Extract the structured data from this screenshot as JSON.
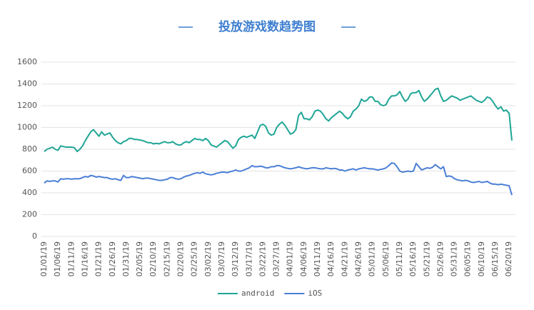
{
  "chart_data": {
    "type": "line",
    "title": "投放游戏数趋势图",
    "categories": [
      "01/01/19",
      null,
      null,
      null,
      null,
      "01/06/19",
      null,
      null,
      null,
      null,
      "01/11/19",
      null,
      null,
      null,
      null,
      "01/16/19",
      null,
      null,
      null,
      null,
      "01/21/19",
      null,
      null,
      null,
      null,
      "01/26/19",
      null,
      null,
      null,
      null,
      "01/31/19",
      null,
      null,
      null,
      null,
      "02/05/19",
      null,
      null,
      null,
      null,
      "02/10/19",
      null,
      null,
      null,
      null,
      "02/15/19",
      null,
      null,
      null,
      null,
      "02/20/19",
      null,
      null,
      null,
      null,
      "02/25/19",
      null,
      null,
      null,
      null,
      "03/02/19",
      null,
      null,
      null,
      null,
      "03/07/19",
      null,
      null,
      null,
      null,
      "03/12/19",
      null,
      null,
      null,
      null,
      "03/17/19",
      null,
      null,
      null,
      null,
      "03/22/19",
      null,
      null,
      null,
      null,
      "03/27/19",
      null,
      null,
      null,
      null,
      "04/01/19",
      null,
      null,
      null,
      null,
      "04/06/19",
      null,
      null,
      null,
      null,
      "04/11/19",
      null,
      null,
      null,
      null,
      "04/16/19",
      null,
      null,
      null,
      null,
      "04/21/19",
      null,
      null,
      null,
      null,
      "04/26/19",
      null,
      null,
      null,
      null,
      "05/01/19",
      null,
      null,
      null,
      null,
      "05/06/19",
      null,
      null,
      null,
      null,
      "05/11/19",
      null,
      null,
      null,
      null,
      "05/16/19",
      null,
      null,
      null,
      null,
      "05/21/19",
      null,
      null,
      null,
      null,
      "05/26/19",
      null,
      null,
      null,
      null,
      "05/31/19",
      null,
      null,
      null,
      null,
      "06/05/19",
      null,
      null,
      null,
      null,
      "06/10/19",
      null,
      null,
      null,
      null,
      "06/15/19",
      null,
      null,
      null,
      null,
      "06/20/19",
      null
    ],
    "series": [
      {
        "name": "android",
        "color": "#1fa596",
        "values": [
          780,
          800,
          810,
          820,
          800,
          790,
          830,
          825,
          820,
          820,
          820,
          815,
          780,
          800,
          830,
          880,
          920,
          960,
          980,
          950,
          920,
          960,
          930,
          940,
          950,
          910,
          880,
          860,
          850,
          870,
          880,
          900,
          900,
          890,
          890,
          885,
          880,
          870,
          860,
          860,
          850,
          855,
          850,
          860,
          870,
          860,
          860,
          870,
          850,
          840,
          840,
          860,
          870,
          860,
          880,
          900,
          890,
          890,
          880,
          900,
          880,
          840,
          830,
          820,
          840,
          860,
          880,
          870,
          840,
          810,
          830,
          890,
          910,
          920,
          910,
          920,
          930,
          900,
          960,
          1020,
          1030,
          1010,
          950,
          930,
          940,
          1000,
          1030,
          1050,
          1020,
          980,
          940,
          950,
          980,
          1110,
          1140,
          1080,
          1080,
          1070,
          1100,
          1150,
          1160,
          1150,
          1120,
          1080,
          1060,
          1090,
          1110,
          1130,
          1150,
          1130,
          1100,
          1080,
          1100,
          1150,
          1170,
          1200,
          1260,
          1240,
          1250,
          1280,
          1280,
          1240,
          1240,
          1210,
          1200,
          1210,
          1260,
          1290,
          1290,
          1300,
          1330,
          1280,
          1240,
          1260,
          1310,
          1320,
          1320,
          1340,
          1280,
          1240,
          1260,
          1290,
          1320,
          1350,
          1360,
          1290,
          1240,
          1250,
          1270,
          1290,
          1280,
          1270,
          1250,
          1260,
          1270,
          1280,
          1290,
          1270,
          1250,
          1240,
          1230,
          1250,
          1280,
          1270,
          1240,
          1200,
          1170,
          1190,
          1150,
          1160,
          1130,
          880
        ]
      },
      {
        "name": "iOS",
        "color": "#4a7fd6",
        "values": [
          490,
          510,
          505,
          510,
          510,
          500,
          530,
          525,
          530,
          530,
          525,
          530,
          530,
          530,
          540,
          550,
          545,
          560,
          555,
          545,
          550,
          545,
          540,
          540,
          530,
          525,
          530,
          520,
          515,
          560,
          540,
          540,
          550,
          545,
          540,
          535,
          530,
          535,
          535,
          530,
          525,
          520,
          515,
          515,
          520,
          525,
          540,
          540,
          530,
          525,
          530,
          545,
          555,
          560,
          570,
          580,
          585,
          580,
          590,
          575,
          570,
          565,
          570,
          580,
          585,
          590,
          590,
          585,
          595,
          600,
          610,
          600,
          600,
          610,
          620,
          630,
          650,
          640,
          640,
          645,
          640,
          630,
          630,
          640,
          640,
          650,
          650,
          640,
          630,
          625,
          620,
          625,
          630,
          640,
          630,
          625,
          620,
          625,
          630,
          630,
          625,
          620,
          620,
          630,
          625,
          620,
          625,
          620,
          610,
          610,
          600,
          610,
          615,
          620,
          610,
          620,
          625,
          630,
          625,
          620,
          620,
          615,
          610,
          615,
          620,
          630,
          650,
          675,
          670,
          640,
          600,
          590,
          595,
          600,
          595,
          600,
          670,
          640,
          610,
          620,
          630,
          625,
          635,
          660,
          640,
          620,
          640,
          550,
          555,
          550,
          530,
          520,
          515,
          510,
          515,
          510,
          500,
          495,
          500,
          505,
          495,
          500,
          505,
          490,
          480,
          480,
          475,
          480,
          475,
          470,
          465,
          380
        ]
      }
    ],
    "ylim": [
      0,
      1600
    ],
    "yticks": [
      0,
      200,
      400,
      600,
      800,
      1000,
      1200,
      1400,
      1600
    ],
    "grid": true,
    "legend": "bottom"
  }
}
